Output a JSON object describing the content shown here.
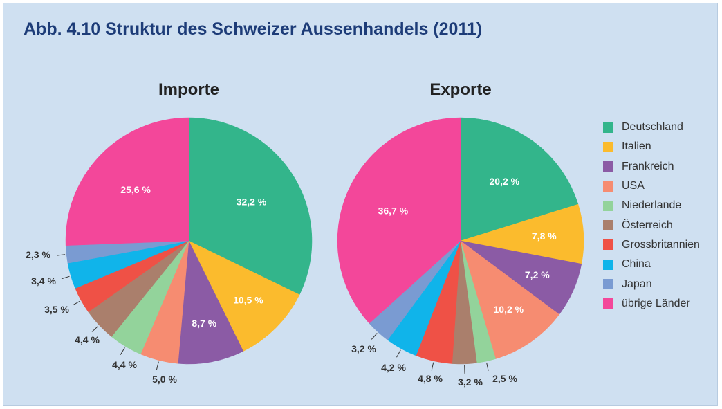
{
  "title": "Abb. 4.10  Struktur des Schweizer Aussenhandels (2011)",
  "legend": [
    {
      "name": "Deutschland",
      "color": "#33b58b"
    },
    {
      "name": "Italien",
      "color": "#fbbb2d"
    },
    {
      "name": "Frankreich",
      "color": "#8b5ba5"
    },
    {
      "name": "USA",
      "color": "#f68c71"
    },
    {
      "name": "Niederlande",
      "color": "#93d39b"
    },
    {
      "name": "Österreich",
      "color": "#aa7f6c"
    },
    {
      "name": "Grossbritannien",
      "color": "#ef5146"
    },
    {
      "name": "China",
      "color": "#10b4ea"
    },
    {
      "name": "Japan",
      "color": "#7a9bd2"
    },
    {
      "name": "übrige Länder",
      "color": "#f3479a"
    }
  ],
  "chart_data": [
    {
      "type": "pie",
      "title": "Importe",
      "categories": [
        "Deutschland",
        "Italien",
        "Frankreich",
        "USA",
        "Niederlande",
        "Österreich",
        "Grossbritannien",
        "China",
        "Japan",
        "übrige Länder"
      ],
      "values": [
        32.2,
        10.5,
        8.7,
        5.0,
        4.4,
        4.4,
        3.5,
        3.4,
        2.3,
        25.6
      ],
      "labels": [
        "32,2 %",
        "10,5 %",
        "8,7 %",
        "5,0 %",
        "4,4 %",
        "4,4 %",
        "3,5 %",
        "3,4 %",
        "2,3 %",
        "25,6 %"
      ],
      "unit": "%",
      "legend": "right"
    },
    {
      "type": "pie",
      "title": "Exporte",
      "categories": [
        "Deutschland",
        "Italien",
        "Frankreich",
        "USA",
        "Niederlande",
        "Österreich",
        "Grossbritannien",
        "China",
        "Japan",
        "übrige Länder"
      ],
      "values": [
        20.2,
        7.8,
        7.2,
        10.2,
        2.5,
        3.2,
        4.8,
        4.2,
        3.2,
        36.7
      ],
      "labels": [
        "20,2 %",
        "7,8 %",
        "7,2 %",
        "10,2 %",
        "2,5 %",
        "3,2 %",
        "4,8 %",
        "4,2 %",
        "3,2 %",
        "36,7 %"
      ],
      "unit": "%",
      "legend": "right"
    }
  ]
}
